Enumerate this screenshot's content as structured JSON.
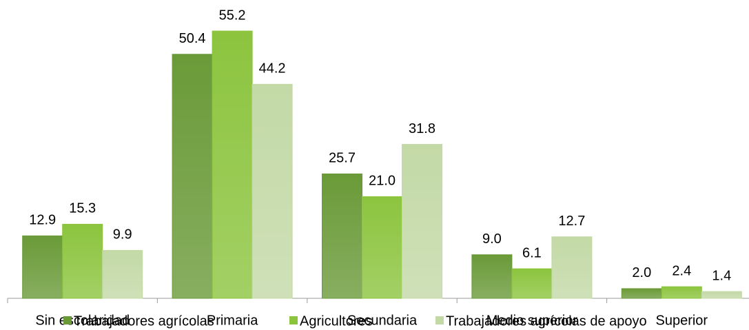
{
  "chart_data": {
    "type": "bar",
    "categories": [
      "Sin escolaridad",
      "Primaria",
      "Secundaria",
      "Medio superior",
      "Superior"
    ],
    "series": [
      {
        "name": "Trabajadores agrícolas",
        "color": "#6a9a38",
        "values": [
          12.9,
          50.4,
          25.7,
          9.0,
          2.0
        ],
        "value_labels": [
          "12.9",
          "50.4",
          "25.7",
          "9.0",
          "2.0"
        ]
      },
      {
        "name": "Agricultores",
        "color": "#8cc43e",
        "values": [
          15.3,
          55.2,
          21.0,
          6.1,
          2.4
        ],
        "value_labels": [
          "15.3",
          "55.2",
          "21.0",
          "6.1",
          "2.4"
        ]
      },
      {
        "name": "Trabajadores agrícolas de apoyo",
        "color": "#c3d9a6",
        "values": [
          9.9,
          44.2,
          31.8,
          12.7,
          1.4
        ],
        "value_labels": [
          "9.9",
          "44.2",
          "31.8",
          "12.7",
          "1.4"
        ]
      }
    ],
    "legend": "bottom"
  }
}
